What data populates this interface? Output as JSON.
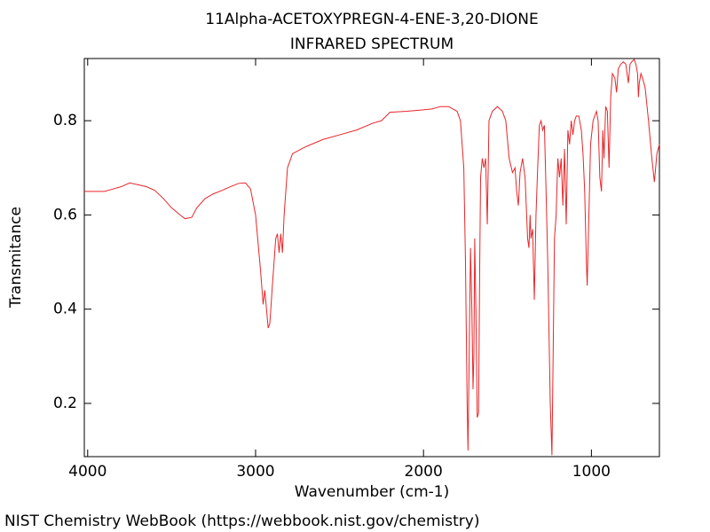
{
  "chart_data": {
    "type": "line",
    "title": "11Alpha-ACETOXYPREGN-4-ENE-3,20-DIONE",
    "subtitle": "INFRARED SPECTRUM",
    "xlabel": "Wavenumber (cm-1)",
    "ylabel": "Transmitance",
    "footer": "NIST Chemistry WebBook (https://webbook.nist.gov/chemistry)",
    "xlim": [
      4020,
      595
    ],
    "ylim": [
      0.087,
      0.932
    ],
    "xticks": [
      4000,
      3000,
      2000,
      1000
    ],
    "yticks": [
      0.2,
      0.4,
      0.6,
      0.8
    ],
    "grid": false,
    "x": [
      4020,
      3900,
      3850,
      3800,
      3750,
      3700,
      3650,
      3600,
      3550,
      3500,
      3450,
      3420,
      3380,
      3350,
      3300,
      3250,
      3200,
      3150,
      3100,
      3060,
      3030,
      3000,
      2970,
      2955,
      2945,
      2935,
      2925,
      2915,
      2900,
      2880,
      2870,
      2860,
      2850,
      2840,
      2830,
      2810,
      2780,
      2700,
      2600,
      2500,
      2400,
      2300,
      2250,
      2200,
      2100,
      2000,
      1950,
      1900,
      1850,
      1800,
      1780,
      1760,
      1750,
      1740,
      1735,
      1728,
      1720,
      1712,
      1705,
      1700,
      1695,
      1688,
      1680,
      1672,
      1665,
      1660,
      1650,
      1640,
      1630,
      1620,
      1610,
      1590,
      1560,
      1530,
      1510,
      1490,
      1470,
      1455,
      1445,
      1435,
      1425,
      1410,
      1395,
      1380,
      1372,
      1365,
      1360,
      1350,
      1340,
      1330,
      1320,
      1310,
      1300,
      1290,
      1280,
      1270,
      1260,
      1245,
      1235,
      1228,
      1220,
      1210,
      1200,
      1190,
      1180,
      1170,
      1160,
      1150,
      1140,
      1130,
      1120,
      1110,
      1100,
      1090,
      1075,
      1060,
      1050,
      1040,
      1030,
      1025,
      1015,
      1005,
      990,
      970,
      960,
      950,
      940,
      932,
      925,
      915,
      905,
      895,
      885,
      875,
      860,
      850,
      840,
      825,
      810,
      795,
      780,
      770,
      760,
      745,
      735,
      725,
      720,
      715,
      705,
      695,
      680,
      660,
      640,
      625,
      610,
      595
    ],
    "series": [
      {
        "name": "Transmitance",
        "color": "#e8262a",
        "values": [
          0.65,
          0.65,
          0.655,
          0.66,
          0.668,
          0.664,
          0.66,
          0.652,
          0.635,
          0.615,
          0.6,
          0.592,
          0.595,
          0.615,
          0.635,
          0.645,
          0.652,
          0.66,
          0.667,
          0.668,
          0.655,
          0.6,
          0.48,
          0.41,
          0.44,
          0.4,
          0.36,
          0.37,
          0.45,
          0.55,
          0.56,
          0.52,
          0.56,
          0.52,
          0.6,
          0.7,
          0.73,
          0.745,
          0.76,
          0.77,
          0.78,
          0.795,
          0.8,
          0.818,
          0.82,
          0.823,
          0.825,
          0.83,
          0.83,
          0.82,
          0.8,
          0.7,
          0.5,
          0.2,
          0.1,
          0.3,
          0.53,
          0.4,
          0.23,
          0.3,
          0.55,
          0.4,
          0.17,
          0.18,
          0.5,
          0.68,
          0.72,
          0.7,
          0.72,
          0.58,
          0.8,
          0.82,
          0.83,
          0.82,
          0.8,
          0.72,
          0.69,
          0.7,
          0.65,
          0.62,
          0.69,
          0.72,
          0.68,
          0.55,
          0.53,
          0.6,
          0.55,
          0.57,
          0.42,
          0.6,
          0.7,
          0.79,
          0.8,
          0.78,
          0.79,
          0.65,
          0.5,
          0.2,
          0.09,
          0.3,
          0.55,
          0.6,
          0.72,
          0.68,
          0.72,
          0.62,
          0.74,
          0.58,
          0.78,
          0.75,
          0.8,
          0.77,
          0.8,
          0.81,
          0.81,
          0.78,
          0.73,
          0.65,
          0.5,
          0.45,
          0.6,
          0.75,
          0.8,
          0.82,
          0.8,
          0.68,
          0.65,
          0.78,
          0.72,
          0.83,
          0.82,
          0.7,
          0.85,
          0.9,
          0.89,
          0.86,
          0.91,
          0.92,
          0.925,
          0.92,
          0.88,
          0.92,
          0.925,
          0.93,
          0.92,
          0.9,
          0.85,
          0.88,
          0.9,
          0.89,
          0.87,
          0.8,
          0.72,
          0.67,
          0.73,
          0.75
        ]
      }
    ]
  }
}
